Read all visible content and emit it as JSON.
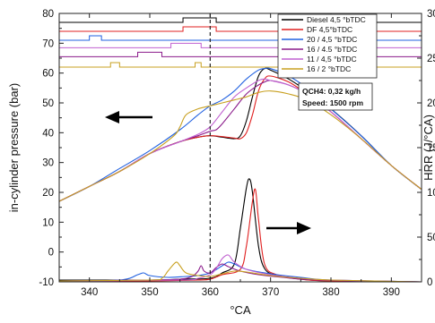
{
  "chart_data": {
    "type": "line",
    "xlabel": "°CA",
    "ylabel_left": "in-cylinder pressure (bar)",
    "ylabel_right": "HRR (J/°CA)",
    "xlim": [
      335,
      395
    ],
    "ylim_left": [
      -10,
      80
    ],
    "ylim_right": [
      0,
      300
    ],
    "x_ticks": [
      340,
      350,
      360,
      370,
      380,
      390
    ],
    "y_ticks_left": [
      -10,
      0,
      10,
      20,
      30,
      40,
      50,
      60,
      70,
      80
    ],
    "y_ticks_right": [
      0,
      50,
      100,
      150,
      200,
      250,
      300
    ],
    "tdc_marker_x": 360,
    "annotation_lines": [
      "QCH4: 0,32 kg/h",
      "Speed: 1500 rpm"
    ],
    "legend_position": "top-right",
    "arrows": [
      {
        "direction": "left",
        "meaning": "pressure curves use left axis"
      },
      {
        "direction": "right",
        "meaning": "HRR curves use right axis"
      }
    ],
    "series": [
      {
        "name": "Diesel 4,5 °bTDC",
        "color": "#000000",
        "pressure": [
          [
            335,
            17
          ],
          [
            340,
            22
          ],
          [
            345,
            27
          ],
          [
            350,
            33
          ],
          [
            355,
            37
          ],
          [
            358,
            38.5
          ],
          [
            360,
            39
          ],
          [
            362,
            38.5
          ],
          [
            364,
            38
          ],
          [
            365,
            39
          ],
          [
            366,
            44
          ],
          [
            367,
            52
          ],
          [
            368,
            59
          ],
          [
            369,
            61.5
          ],
          [
            370,
            61
          ],
          [
            373,
            58
          ],
          [
            376,
            54
          ],
          [
            380,
            48
          ],
          [
            385,
            39
          ],
          [
            390,
            29
          ],
          [
            395,
            21
          ]
        ],
        "hrr": [
          [
            335,
            2
          ],
          [
            350,
            2
          ],
          [
            355,
            3
          ],
          [
            360,
            4
          ],
          [
            362,
            10
          ],
          [
            364,
            20
          ],
          [
            365,
            60
          ],
          [
            366,
            105
          ],
          [
            366.5,
            115
          ],
          [
            367,
            100
          ],
          [
            368,
            40
          ],
          [
            369,
            15
          ],
          [
            371,
            7
          ],
          [
            375,
            3
          ],
          [
            380,
            1
          ],
          [
            395,
            0
          ]
        ],
        "injection_trace_level_bar": 77,
        "injection_pulses": [
          [
            355.5,
            361
          ]
        ]
      },
      {
        "name": "DF 4,5°bTDC",
        "color": "#e02020",
        "pressure": [
          [
            335,
            17
          ],
          [
            340,
            22
          ],
          [
            345,
            27
          ],
          [
            350,
            33
          ],
          [
            355,
            37
          ],
          [
            358,
            38.5
          ],
          [
            360,
            39
          ],
          [
            362,
            38.7
          ],
          [
            364,
            38.2
          ],
          [
            365,
            38
          ],
          [
            366,
            40
          ],
          [
            367,
            46
          ],
          [
            368,
            54
          ],
          [
            369,
            58
          ],
          [
            370,
            59
          ],
          [
            373,
            57
          ],
          [
            376,
            53
          ],
          [
            380,
            47
          ],
          [
            385,
            38
          ],
          [
            390,
            29
          ],
          [
            395,
            21
          ]
        ],
        "hrr": [
          [
            335,
            1
          ],
          [
            350,
            1
          ],
          [
            358,
            2
          ],
          [
            360,
            3
          ],
          [
            362,
            8
          ],
          [
            365,
            14
          ],
          [
            366,
            40
          ],
          [
            367,
            90
          ],
          [
            367.5,
            103
          ],
          [
            368,
            70
          ],
          [
            369,
            20
          ],
          [
            371,
            8
          ],
          [
            375,
            3
          ],
          [
            380,
            1
          ],
          [
            395,
            0
          ]
        ],
        "injection_trace_level_bar": 74,
        "injection_pulses": [
          [
            355.5,
            361
          ]
        ]
      },
      {
        "name": "20 / 4,5 °bTDC",
        "color": "#2060e0",
        "pressure": [
          [
            335,
            17
          ],
          [
            340,
            22
          ],
          [
            345,
            28
          ],
          [
            350,
            34
          ],
          [
            355,
            41
          ],
          [
            358,
            46
          ],
          [
            360,
            49
          ],
          [
            362,
            51
          ],
          [
            364,
            54
          ],
          [
            366,
            58
          ],
          [
            368,
            61
          ],
          [
            369,
            61.5
          ],
          [
            370,
            61.5
          ],
          [
            373,
            59
          ],
          [
            376,
            55
          ],
          [
            380,
            48
          ],
          [
            385,
            39
          ],
          [
            390,
            29
          ],
          [
            395,
            21
          ]
        ],
        "hrr": [
          [
            335,
            1
          ],
          [
            345,
            2
          ],
          [
            348,
            8
          ],
          [
            349,
            10
          ],
          [
            350,
            7
          ],
          [
            353,
            5
          ],
          [
            356,
            6
          ],
          [
            358,
            7
          ],
          [
            360,
            10
          ],
          [
            362,
            18
          ],
          [
            363,
            22
          ],
          [
            364,
            20
          ],
          [
            366,
            14
          ],
          [
            370,
            9
          ],
          [
            375,
            5
          ],
          [
            380,
            2
          ],
          [
            395,
            0
          ]
        ],
        "injection_trace_level_bar": 71,
        "injection_pulses": [
          [
            340,
            342
          ]
        ]
      },
      {
        "name": "16 / 4.5 °bTDC",
        "color": "#8a1a8a",
        "pressure": [
          [
            335,
            17
          ],
          [
            340,
            22
          ],
          [
            345,
            27
          ],
          [
            350,
            33
          ],
          [
            355,
            37
          ],
          [
            358,
            39
          ],
          [
            360,
            40.5
          ],
          [
            361,
            41
          ],
          [
            362,
            43
          ],
          [
            364,
            48
          ],
          [
            366,
            53
          ],
          [
            368,
            56
          ],
          [
            369,
            57
          ],
          [
            370,
            57.5
          ],
          [
            373,
            56
          ],
          [
            376,
            53
          ],
          [
            380,
            47
          ],
          [
            385,
            38
          ],
          [
            390,
            29
          ],
          [
            395,
            21
          ]
        ],
        "hrr": [
          [
            335,
            1
          ],
          [
            350,
            2
          ],
          [
            355,
            3
          ],
          [
            357,
            6
          ],
          [
            358,
            12
          ],
          [
            358.5,
            18
          ],
          [
            359,
            12
          ],
          [
            360,
            10
          ],
          [
            361,
            16
          ],
          [
            362,
            20
          ],
          [
            363,
            17
          ],
          [
            365,
            12
          ],
          [
            368,
            8
          ],
          [
            372,
            5
          ],
          [
            378,
            2
          ],
          [
            395,
            0
          ]
        ],
        "injection_trace_level_bar": 65.5,
        "injection_pulses": [
          [
            348,
            352
          ]
        ]
      },
      {
        "name": "11 / 4,5 °bTDC",
        "color": "#c060d0",
        "pressure": [
          [
            335,
            17
          ],
          [
            340,
            22
          ],
          [
            345,
            27
          ],
          [
            350,
            33
          ],
          [
            355,
            37
          ],
          [
            358,
            39.5
          ],
          [
            360,
            42
          ],
          [
            362,
            47
          ],
          [
            364,
            52
          ],
          [
            366,
            55
          ],
          [
            368,
            57.5
          ],
          [
            369,
            58
          ],
          [
            370,
            57.5
          ],
          [
            373,
            56
          ],
          [
            376,
            53
          ],
          [
            380,
            47
          ],
          [
            385,
            38
          ],
          [
            390,
            29
          ],
          [
            395,
            21
          ]
        ],
        "hrr": [
          [
            335,
            1
          ],
          [
            355,
            2
          ],
          [
            358,
            4
          ],
          [
            360,
            8
          ],
          [
            361,
            15
          ],
          [
            362,
            26
          ],
          [
            363,
            30
          ],
          [
            364,
            22
          ],
          [
            366,
            14
          ],
          [
            370,
            8
          ],
          [
            375,
            4
          ],
          [
            380,
            2
          ],
          [
            395,
            0
          ]
        ],
        "injection_trace_level_bar": 68.5,
        "injection_pulses": [
          [
            353.5,
            358.5
          ]
        ]
      },
      {
        "name": "16 / 2 °bTDC",
        "color": "#c8a020",
        "pressure": [
          [
            335,
            17
          ],
          [
            340,
            22
          ],
          [
            345,
            27
          ],
          [
            350,
            33
          ],
          [
            354,
            39
          ],
          [
            355,
            42
          ],
          [
            356,
            46
          ],
          [
            358,
            48
          ],
          [
            360,
            49
          ],
          [
            362,
            50
          ],
          [
            364,
            51
          ],
          [
            366,
            52
          ],
          [
            368,
            53.5
          ],
          [
            370,
            54
          ],
          [
            373,
            53
          ],
          [
            376,
            51
          ],
          [
            380,
            46
          ],
          [
            385,
            38
          ],
          [
            390,
            29
          ],
          [
            395,
            21
          ]
        ],
        "hrr": [
          [
            335,
            1
          ],
          [
            350,
            2
          ],
          [
            352,
            4
          ],
          [
            353,
            12
          ],
          [
            354,
            20
          ],
          [
            354.5,
            22
          ],
          [
            355,
            18
          ],
          [
            356,
            10
          ],
          [
            358,
            7
          ],
          [
            360,
            6
          ],
          [
            362,
            9
          ],
          [
            364,
            12
          ],
          [
            366,
            11
          ],
          [
            370,
            7
          ],
          [
            375,
            4
          ],
          [
            380,
            2
          ],
          [
            395,
            0
          ]
        ],
        "injection_trace_level_bar": 62,
        "injection_pulses": [
          [
            343.5,
            345
          ],
          [
            357.5,
            358.5
          ]
        ]
      }
    ]
  }
}
